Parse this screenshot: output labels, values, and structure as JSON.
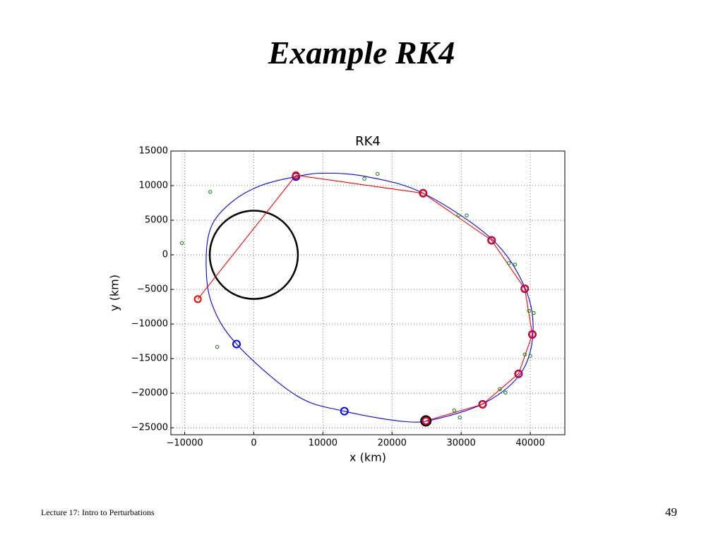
{
  "slide": {
    "title": "Example RK4",
    "footer": "Lecture 17: Intro to Perturbations",
    "page_number": "49"
  },
  "chart_data": {
    "type": "scatter",
    "title": "RK4",
    "x_label": "x (km)",
    "y_label": "y (km)",
    "xlim": [
      -12000,
      45000
    ],
    "ylim": [
      -26000,
      15000
    ],
    "grid": true,
    "xticks": [
      {
        "value": -10000,
        "label": "−10000"
      },
      0,
      10000,
      20000,
      30000,
      40000
    ],
    "yticks": [
      {
        "value": -25000,
        "label": "−25000"
      },
      {
        "value": -20000,
        "label": "−20000"
      },
      {
        "value": -15000,
        "label": "−15000"
      },
      {
        "value": -10000,
        "label": "−10000"
      },
      {
        "value": -5000,
        "label": "−5000"
      },
      0,
      5000,
      10000,
      15000
    ],
    "series": [
      {
        "kind": "line",
        "color": "#0000ff",
        "closed": true,
        "x": [
          6100,
          10200,
          16300,
          24500,
          34400,
          39200,
          40400,
          38700,
          33600,
          26500,
          21900,
          13100,
          6100,
          -2500,
          -6100,
          -6900,
          -6100,
          -3100,
          1000
        ],
        "y": [
          11300,
          11800,
          11300,
          8900,
          2300,
          -4700,
          -11100,
          -17000,
          -21300,
          -23700,
          -24100,
          -22600,
          -20300,
          -12900,
          -7000,
          -900,
          4200,
          7700,
          10000
        ]
      },
      {
        "kind": "circle",
        "color": "#000000",
        "center": [
          0,
          0
        ],
        "radius": 6378
      },
      {
        "kind": "line",
        "color": "#ff0000",
        "x": [
          24900,
          33100,
          38300,
          40300,
          39200,
          34400,
          24500,
          6100,
          -8100
        ],
        "y": [
          -24000,
          -21600,
          -17200,
          -11500,
          -4900,
          2100,
          8900,
          11500,
          -6400
        ]
      },
      {
        "kind": "markers",
        "color": "#0000ff",
        "size": 5,
        "x": [
          24900,
          33100,
          38300,
          40300,
          39200,
          34400,
          24500,
          6100,
          -2500,
          13100
        ],
        "y": [
          -24000,
          -21600,
          -17200,
          -11500,
          -4900,
          2100,
          8900,
          11300,
          -12900,
          -22600
        ]
      },
      {
        "kind": "markers",
        "color": "#ff0000",
        "size": 4.5,
        "x": [
          24900,
          33100,
          38300,
          40300,
          39200,
          34400,
          24500,
          6100,
          -8100
        ],
        "y": [
          -24000,
          -21600,
          -17200,
          -11500,
          -4900,
          2100,
          8900,
          11500,
          -6400
        ]
      },
      {
        "kind": "markers",
        "color": "#008000",
        "size": 2.2,
        "x": [
          -6300,
          -10400,
          -5300,
          16000,
          17900,
          29600,
          30800,
          36900,
          37800,
          39800,
          40500,
          39200,
          40000,
          35600,
          36400,
          29000,
          29800
        ],
        "y": [
          9100,
          1700,
          -13300,
          11000,
          11700,
          5700,
          5700,
          -1200,
          -1400,
          -8100,
          -8400,
          -14400,
          -14600,
          -19400,
          -19900,
          -22500,
          -23500
        ]
      },
      {
        "kind": "markers",
        "color": "#000000",
        "size": 7,
        "x": [
          24900
        ],
        "y": [
          -24000
        ]
      }
    ]
  }
}
